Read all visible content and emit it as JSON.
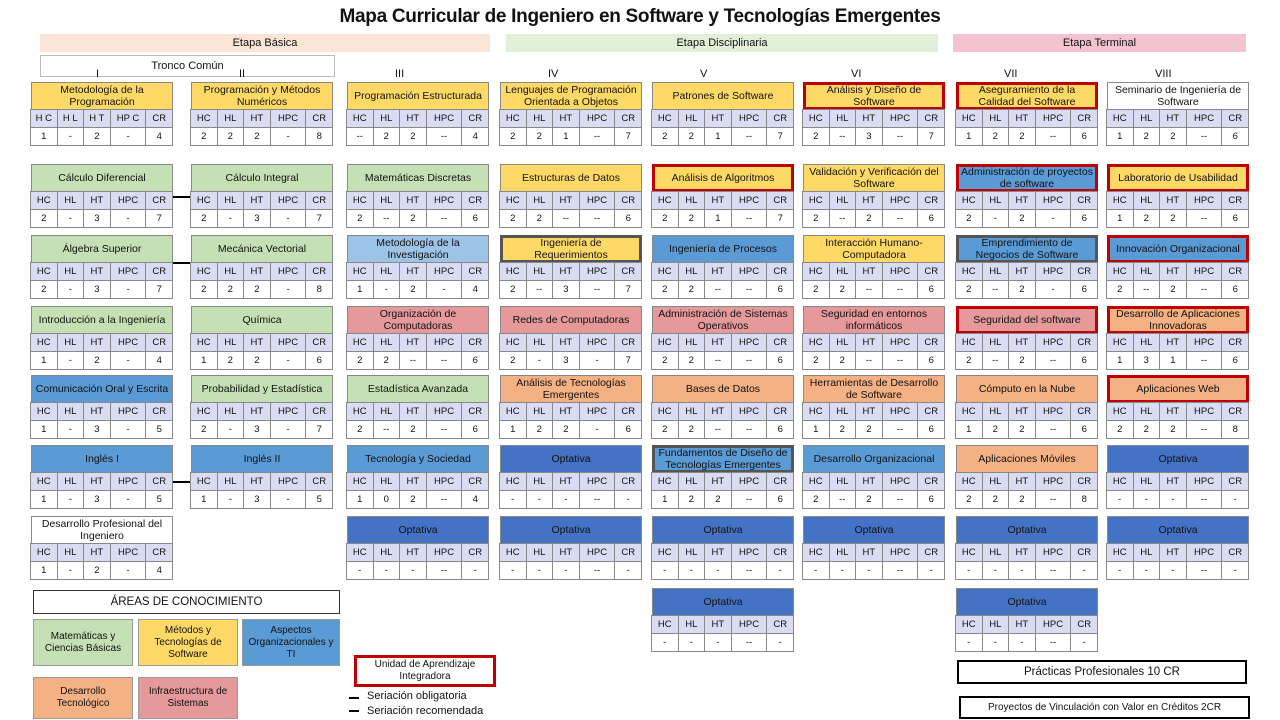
{
  "title": "Mapa Curricular de Ingeniero en Software y Tecnologías Emergentes",
  "stages": [
    {
      "label": "Etapa Básica",
      "color": "#fbe5d6"
    },
    {
      "label": "Etapa Disciplinaria",
      "color": "#e2f0d9"
    },
    {
      "label": "Etapa Terminal",
      "color": "#f4c3d2"
    }
  ],
  "tronco": "Tronco Común",
  "palette": {
    "math": "#c5e0b4",
    "methods": "#ffd966",
    "org": "#5b9bd5",
    "dev": "#f4b183",
    "infra": "#e6999a",
    "inv": "#9dc3e6",
    "opt": "#4472c4",
    "none": "#ffffff"
  },
  "headers": [
    "HC",
    "HL",
    "HT",
    "HPC",
    "CR"
  ],
  "columns": [
    {
      "label": "I",
      "courses": [
        {
          "name": "Metodología de la Programación",
          "area": "methods",
          "headers": [
            "H C",
            "H L",
            "H T",
            "HP C",
            "CR"
          ],
          "values": [
            "1",
            "-",
            "2",
            "-",
            "4"
          ]
        },
        {
          "name": "Cálculo Diferencial",
          "area": "math",
          "values": [
            "2",
            "-",
            "3",
            "-",
            "7"
          ]
        },
        {
          "name": "Álgebra Superior",
          "area": "math",
          "values": [
            "2",
            "-",
            "3",
            "-",
            "7"
          ]
        },
        {
          "name": "Introducción a la Ingeniería",
          "area": "math",
          "values": [
            "1",
            "-",
            "2",
            "-",
            "4"
          ]
        },
        {
          "name": "Comunicación Oral y Escrita",
          "area": "org",
          "values": [
            "1",
            "-",
            "3",
            "-",
            "5"
          ]
        },
        {
          "name": "Inglés I",
          "area": "org",
          "values": [
            "1",
            "-",
            "3",
            "-",
            "5"
          ]
        },
        {
          "name": "Desarrollo Profesional del Ingeniero",
          "area": "none",
          "values": [
            "1",
            "-",
            "2",
            "-",
            "4"
          ]
        }
      ]
    },
    {
      "label": "II",
      "courses": [
        {
          "name": "Programación y Métodos Numéricos",
          "area": "methods",
          "values": [
            "2",
            "2",
            "2",
            "-",
            "8"
          ]
        },
        {
          "name": "Cálculo Integral",
          "area": "math",
          "values": [
            "2",
            "-",
            "3",
            "-",
            "7"
          ]
        },
        {
          "name": "Mecánica Vectorial",
          "area": "math",
          "values": [
            "2",
            "2",
            "2",
            "-",
            "8"
          ]
        },
        {
          "name": "Química",
          "area": "math",
          "values": [
            "1",
            "2",
            "2",
            "-",
            "6"
          ]
        },
        {
          "name": "Probabilidad y Estadística",
          "area": "math",
          "values": [
            "2",
            "-",
            "3",
            "-",
            "7"
          ]
        },
        {
          "name": "Inglés II",
          "area": "org",
          "values": [
            "1",
            "-",
            "3",
            "-",
            "5"
          ]
        }
      ]
    },
    {
      "label": "III",
      "courses": [
        {
          "name": "Programación Estructurada",
          "area": "methods",
          "values": [
            "--",
            "2",
            "2",
            "--",
            "4"
          ]
        },
        {
          "name": "Matemáticas Discretas",
          "area": "math",
          "values": [
            "2",
            "--",
            "2",
            "--",
            "6"
          ]
        },
        {
          "name": "Metodología de la Investigación",
          "area": "inv",
          "values": [
            "1",
            "-",
            "2",
            "-",
            "4"
          ]
        },
        {
          "name": "Organización de Computadoras",
          "area": "infra",
          "values": [
            "2",
            "2",
            "--",
            "--",
            "6"
          ]
        },
        {
          "name": "Estadística Avanzada",
          "area": "math",
          "values": [
            "2",
            "--",
            "2",
            "--",
            "6"
          ]
        },
        {
          "name": "Tecnología y Sociedad",
          "area": "org",
          "values": [
            "1",
            "0",
            "2",
            "--",
            "4"
          ]
        },
        {
          "name": "Optativa",
          "area": "opt",
          "values": [
            "-",
            "-",
            "-",
            "--",
            "-"
          ]
        }
      ]
    },
    {
      "label": "IV",
      "courses": [
        {
          "name": "Lenguajes de Programación Orientada a Objetos",
          "area": "methods",
          "values": [
            "2",
            "2",
            "1",
            "--",
            "7"
          ]
        },
        {
          "name": "Estructuras de Datos",
          "area": "methods",
          "values": [
            "2",
            "2",
            "--",
            "--",
            "6"
          ]
        },
        {
          "name": "Ingeniería de Requerimientos",
          "area": "methods",
          "frame": "dark",
          "values": [
            "2",
            "--",
            "3",
            "--",
            "7"
          ]
        },
        {
          "name": "Redes de Computadoras",
          "area": "infra",
          "values": [
            "2",
            "-",
            "3",
            "-",
            "7"
          ]
        },
        {
          "name": "Análisis de Tecnologías Emergentes",
          "area": "dev",
          "values": [
            "1",
            "2",
            "2",
            "-",
            "6"
          ]
        },
        {
          "name": "Optativa",
          "area": "opt",
          "values": [
            "-",
            "-",
            "-",
            "--",
            "-"
          ]
        },
        {
          "name": "Optativa",
          "area": "opt",
          "values": [
            "-",
            "-",
            "-",
            "--",
            "-"
          ]
        }
      ]
    },
    {
      "label": "V",
      "courses": [
        {
          "name": "Patrones de Software",
          "area": "methods",
          "values": [
            "2",
            "2",
            "1",
            "--",
            "7"
          ]
        },
        {
          "name": "Análisis de Algoritmos",
          "area": "methods",
          "frame": "red",
          "values": [
            "2",
            "2",
            "1",
            "--",
            "7"
          ]
        },
        {
          "name": "Ingeniería de Procesos",
          "area": "org",
          "values": [
            "2",
            "2",
            "--",
            "--",
            "6"
          ]
        },
        {
          "name": "Administración de Sistemas Operativos",
          "area": "infra",
          "values": [
            "2",
            "2",
            "--",
            "--",
            "6"
          ]
        },
        {
          "name": "Bases de Datos",
          "area": "dev",
          "values": [
            "2",
            "2",
            "--",
            "--",
            "6"
          ]
        },
        {
          "name": "Fundamentos de Diseño de Tecnologías Emergentes",
          "area": "org",
          "frame": "dark",
          "values": [
            "1",
            "2",
            "2",
            "--",
            "6"
          ]
        },
        {
          "name": "Optativa",
          "area": "opt",
          "values": [
            "-",
            "-",
            "-",
            "--",
            "-"
          ]
        },
        {
          "name": "Optativa",
          "area": "opt",
          "values": [
            "-",
            "-",
            "-",
            "--",
            "-"
          ]
        }
      ]
    },
    {
      "label": "VI",
      "courses": [
        {
          "name": "Análisis y Diseño de Software",
          "area": "methods",
          "frame": "red",
          "values": [
            "2",
            "--",
            "3",
            "--",
            "7"
          ]
        },
        {
          "name": "Validación y Verificación del Software",
          "area": "methods",
          "values": [
            "2",
            "--",
            "2",
            "--",
            "6"
          ]
        },
        {
          "name": "Interacción Humano-Computadora",
          "area": "methods",
          "values": [
            "2",
            "2",
            "--",
            "--",
            "6"
          ]
        },
        {
          "name": "Seguridad en entornos informáticos",
          "area": "infra",
          "values": [
            "2",
            "2",
            "--",
            "--",
            "6"
          ]
        },
        {
          "name": "Herramientas de Desarrollo de Software",
          "area": "dev",
          "values": [
            "1",
            "2",
            "2",
            "--",
            "6"
          ]
        },
        {
          "name": "Desarrollo Organizacional",
          "area": "org",
          "values": [
            "2",
            "--",
            "2",
            "--",
            "6"
          ]
        },
        {
          "name": "Optativa",
          "area": "opt",
          "values": [
            "-",
            "-",
            "-",
            "--",
            "-"
          ]
        }
      ]
    },
    {
      "label": "VII",
      "courses": [
        {
          "name": "Aseguramiento de la Calidad del Software",
          "area": "methods",
          "frame": "red",
          "values": [
            "1",
            "2",
            "2",
            "--",
            "6"
          ]
        },
        {
          "name": "Administración de proyectos de software",
          "area": "org",
          "frame": "red",
          "values": [
            "2",
            "-",
            "2",
            "-",
            "6"
          ]
        },
        {
          "name": "Emprendimiento de Negocios de Software",
          "area": "org",
          "frame": "dark",
          "values": [
            "2",
            "--",
            "2",
            "-",
            "6"
          ]
        },
        {
          "name": "Seguridad del software",
          "area": "infra",
          "frame": "red",
          "values": [
            "2",
            "--",
            "2",
            "--",
            "6"
          ]
        },
        {
          "name": "Cómputo en la Nube",
          "area": "dev",
          "values": [
            "1",
            "2",
            "2",
            "--",
            "6"
          ]
        },
        {
          "name": "Aplicaciones Móviles",
          "area": "dev",
          "values": [
            "2",
            "2",
            "2",
            "--",
            "8"
          ]
        },
        {
          "name": "Optativa",
          "area": "opt",
          "values": [
            "-",
            "-",
            "-",
            "--",
            "-"
          ]
        },
        {
          "name": "Optativa",
          "area": "opt",
          "values": [
            "-",
            "-",
            "-",
            "--",
            "-"
          ]
        }
      ]
    },
    {
      "label": "VIII",
      "courses": [
        {
          "name": "Seminario de Ingeniería de Software",
          "area": "none",
          "values": [
            "1",
            "2",
            "2",
            "--",
            "6"
          ]
        },
        {
          "name": "Laboratorio de Usabilidad",
          "area": "methods",
          "frame": "red",
          "values": [
            "1",
            "2",
            "2",
            "--",
            "6"
          ]
        },
        {
          "name": "Innovación Organizacional",
          "area": "org",
          "frame": "red",
          "values": [
            "2",
            "--",
            "2",
            "--",
            "6"
          ]
        },
        {
          "name": "Desarrollo de Aplicaciones Innovadoras",
          "area": "dev",
          "frame": "red",
          "values": [
            "1",
            "3",
            "1",
            "--",
            "6"
          ]
        },
        {
          "name": "Aplicaciones Web",
          "area": "dev",
          "frame": "red",
          "values": [
            "2",
            "2",
            "2",
            "--",
            "8"
          ]
        },
        {
          "name": "Optativa",
          "area": "opt",
          "values": [
            "-",
            "-",
            "-",
            "--",
            "-"
          ]
        },
        {
          "name": "Optativa",
          "area": "opt",
          "values": [
            "-",
            "-",
            "-",
            "--",
            "-"
          ]
        }
      ]
    }
  ],
  "legend": {
    "title": "ÁREAS DE CONOCIMIENTO",
    "areas": [
      {
        "key": "math",
        "label": "Matemáticas y Ciencias Básicas"
      },
      {
        "key": "methods",
        "label": "Métodos y Tecnologías de Software"
      },
      {
        "key": "org",
        "label": "Aspectos Organizacionales y TI"
      },
      {
        "key": "dev",
        "label": "Desarrollo Tecnológico"
      },
      {
        "key": "infra",
        "label": "Infraestructura de Sistemas"
      }
    ],
    "integradora": "Unidad de Aprendizaje Integradora",
    "seriation": [
      "Seriación obligatoria",
      "Seriación recomendada"
    ]
  },
  "footer": [
    "Prácticas Profesionales 10 CR",
    "Proyectos de Vinculación con Valor en Créditos 2CR"
  ]
}
